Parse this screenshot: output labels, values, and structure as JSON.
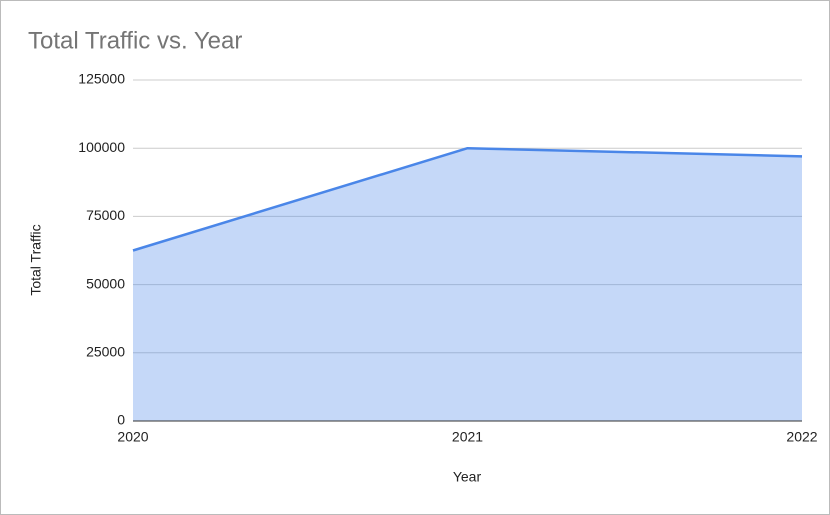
{
  "chart_data": {
    "type": "area",
    "title": "Total Traffic vs. Year",
    "x_label": "Year",
    "y_label": "Total Traffic",
    "x": [
      2020,
      2021,
      2022
    ],
    "series": [
      {
        "name": "Total Traffic",
        "color": "#4a86e8",
        "values": [
          62500,
          100000,
          97000
        ]
      }
    ],
    "xlim": [
      2020,
      2022
    ],
    "xticks": [
      2020,
      2021,
      2022
    ],
    "ylim": [
      0,
      125000
    ],
    "yticks": [
      0,
      25000,
      50000,
      75000,
      100000,
      125000
    ],
    "grid": true
  }
}
